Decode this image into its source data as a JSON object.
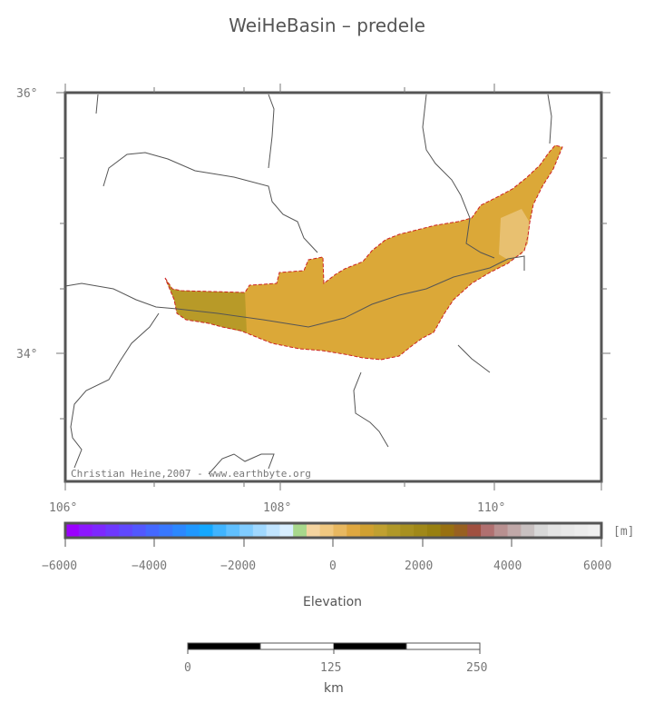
{
  "title": "WeiHeBasin – predele",
  "credit": "Christian Heine,2007 - www.earthbyte.org",
  "map": {
    "lat_labels": [
      "36°",
      "34°"
    ],
    "lon_labels": [
      "106°",
      "108°",
      "110°"
    ],
    "basin_color": "#dba838",
    "basin_dark_color": "#b89a28",
    "basin_light_color": "#e8c070",
    "outline_color": "#cc2222",
    "river_color": "#555555"
  },
  "colorbar": {
    "unit": "[m]",
    "tick_labels": [
      "−6000",
      "−4000",
      "−2000",
      "0",
      "2000",
      "4000",
      "6000"
    ],
    "title": "Elevation",
    "range": [
      -6000,
      6000
    ],
    "colors": [
      "#9b00ff",
      "#8c18ff",
      "#7d28ff",
      "#6e38ff",
      "#6048ff",
      "#5258ff",
      "#4468ff",
      "#3878ff",
      "#2c88ff",
      "#2098ff",
      "#14a8ff",
      "#40b4ff",
      "#60c0ff",
      "#80ccff",
      "#a0d8ff",
      "#c0e4ff",
      "#d8eeff",
      "#a8d88c",
      "#f4d4a0",
      "#f0c880",
      "#e8b860",
      "#e0a840",
      "#d0a030",
      "#c0a030",
      "#b09828",
      "#a89020",
      "#a08818",
      "#988010",
      "#987010",
      "#986020",
      "#a05040",
      "#b07070",
      "#b89090",
      "#c0a8a8",
      "#c8c0c0",
      "#d8d8d8",
      "#e4e4e4",
      "#e8e8e8",
      "#ececec",
      "#f0f0f0"
    ]
  },
  "scalebar": {
    "tick_labels": [
      "0",
      "125",
      "250"
    ],
    "unit": "km"
  }
}
